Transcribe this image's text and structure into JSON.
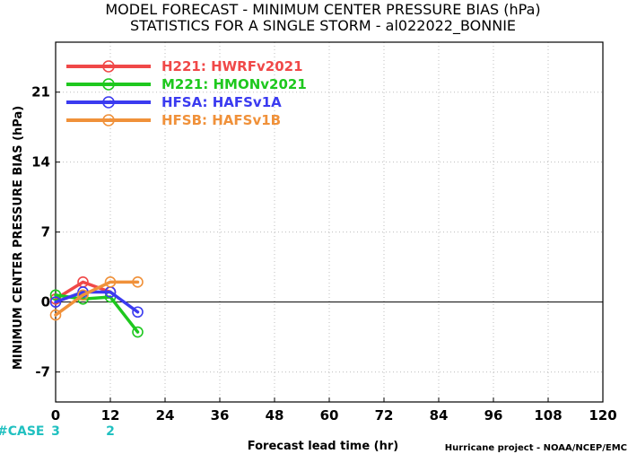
{
  "chart_data": {
    "type": "line",
    "title": "MODEL FORECAST - MINIMUM CENTER PRESSURE BIAS (hPa)",
    "subtitle": "STATISTICS FOR A SINGLE STORM - al022022_BONNIE",
    "xlabel": "Forecast lead time (hr)",
    "ylabel": "MINIMUM CENTER PRESSURE BIAS (hPa)",
    "xlim": [
      0,
      120
    ],
    "ylim": [
      -10,
      26
    ],
    "x_ticks": [
      "0",
      "12",
      "24",
      "36",
      "48",
      "60",
      "72",
      "84",
      "96",
      "108",
      "120"
    ],
    "y_ticks": [
      "-7",
      "0",
      "7",
      "14",
      "21"
    ],
    "grid": true,
    "legend_position": "top-left",
    "series": [
      {
        "name": "H221: HWRFv2021",
        "color": "#f04848",
        "x": [
          0,
          6,
          12
        ],
        "y": [
          0.3,
          2.0,
          1.0
        ]
      },
      {
        "name": "M221: HMONv2021",
        "color": "#1ec81e",
        "x": [
          0,
          6,
          12,
          18
        ],
        "y": [
          0.7,
          0.3,
          0.5,
          -3.0
        ]
      },
      {
        "name": "HFSA: HAFSv1A",
        "color": "#3b3bf0",
        "x": [
          0,
          6,
          12,
          18
        ],
        "y": [
          0.0,
          1.0,
          1.0,
          -1.0
        ]
      },
      {
        "name": "HFSB: HAFSv1B",
        "color": "#f0913a",
        "x": [
          0,
          6,
          12,
          18
        ],
        "y": [
          -1.3,
          0.7,
          2.0,
          2.0
        ]
      }
    ],
    "case_counts": {
      "label": "#CASE",
      "color": "#20c0c0",
      "entries": [
        {
          "x": 0,
          "value": "3"
        },
        {
          "x": 12,
          "value": "2"
        }
      ]
    }
  },
  "credit": "Hurricane project - NOAA/NCEP/EMC"
}
